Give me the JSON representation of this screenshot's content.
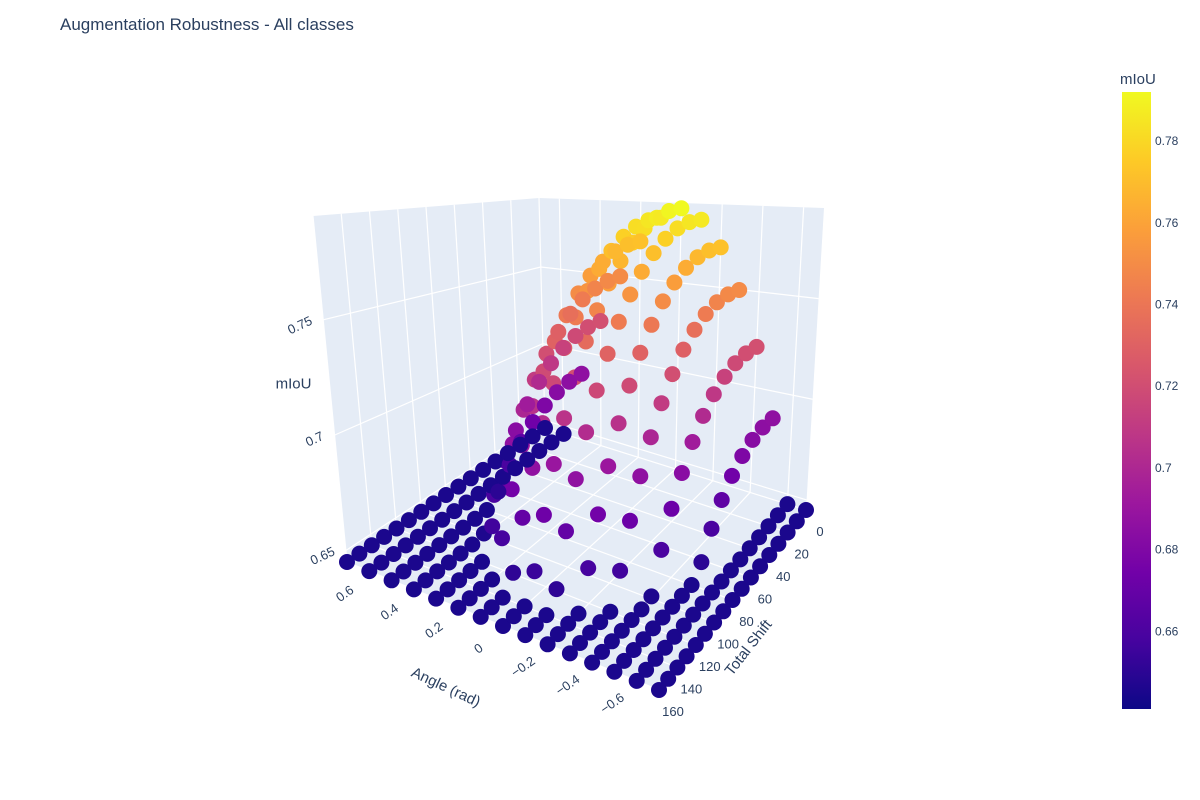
{
  "chart_data": {
    "type": "scatter3d",
    "title": "Augmentation Robustness - All classes",
    "x_axis": {
      "title": "Total Shift",
      "range": [
        0,
        160
      ],
      "tick_labels": [
        "0",
        "20",
        "40",
        "60",
        "80",
        "100",
        "120",
        "140",
        "160"
      ]
    },
    "y_axis": {
      "title": "Angle (rad)",
      "range": [
        -0.7,
        0.7
      ],
      "tick_labels": [
        "0.6",
        "0.4",
        "0.2",
        "0",
        "−0.2",
        "−0.4",
        "−0.6"
      ]
    },
    "z_axis": {
      "title": "mIoU",
      "range": [
        0.645,
        0.795
      ],
      "tick_labels": [
        "0.65",
        "0.7",
        "0.75"
      ]
    },
    "colorbar": {
      "title": "mIoU",
      "range": [
        0.641,
        0.792
      ],
      "colorscale": "plasma",
      "tick_labels": [
        "0.66",
        "0.68",
        "0.7",
        "0.72",
        "0.74",
        "0.76",
        "0.78"
      ]
    },
    "data_description": "Shift values 0 to 160 step 10, angle values -0.7 to 0.7 step 0.1; mIoU peaks near 0.79 at zero shift/zero angle and decreases toward ~0.645 at large shift and large absolute angle.",
    "shift_values": [
      0,
      10,
      20,
      30,
      40,
      50,
      60,
      70,
      80,
      90,
      100,
      110,
      120,
      130,
      140,
      150,
      160
    ],
    "angle_values": [
      -0.7,
      -0.6,
      -0.5,
      -0.4,
      -0.3,
      -0.2,
      -0.1,
      0,
      0.1,
      0.2,
      0.3,
      0.4,
      0.5,
      0.6,
      0.7
    ],
    "peak_miou": 0.792,
    "min_miou": 0.645,
    "grid": true,
    "legend": "none"
  }
}
